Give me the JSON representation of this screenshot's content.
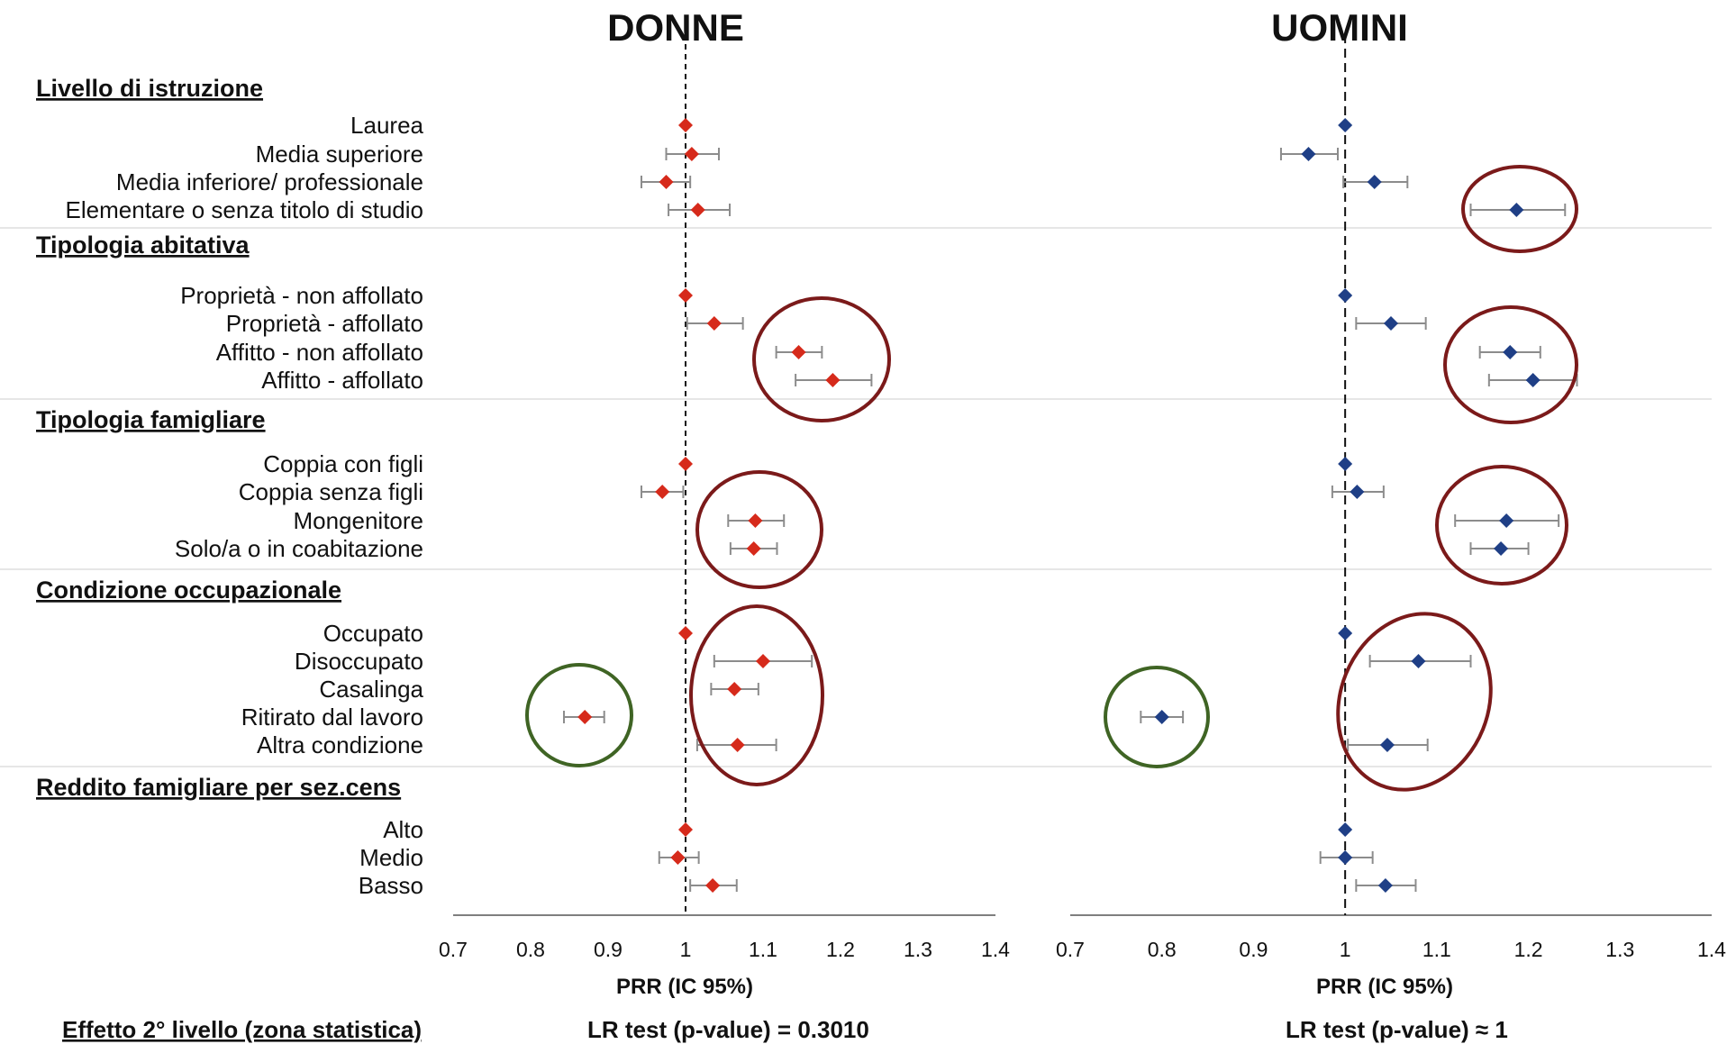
{
  "chart_data": [
    {
      "type": "scatter",
      "title": "DONNE",
      "xlabel": "PRR (IC 95%)",
      "xlim": [
        0.7,
        1.4
      ],
      "xticks": [
        "0.7",
        "0.8",
        "0.9",
        "1",
        "1.1",
        "1.2",
        "1.3",
        "1.4"
      ],
      "reference_line": 1,
      "marker_color": "#d62a1b",
      "rows": [
        {
          "label": "Laurea",
          "prr": 1.0,
          "lo": null,
          "hi": null
        },
        {
          "label": "Media superiore",
          "prr": 1.008,
          "lo": 0.975,
          "hi": 1.043
        },
        {
          "label": "Media inferiore/ professionale",
          "prr": 0.975,
          "lo": 0.943,
          "hi": 1.006
        },
        {
          "label": "Elementare o senza titolo di studio",
          "prr": 1.016,
          "lo": 0.978,
          "hi": 1.057
        },
        {
          "label": "Proprietà - non affollato",
          "prr": 1.0,
          "lo": null,
          "hi": null
        },
        {
          "label": "Proprietà - affollato",
          "prr": 1.037,
          "lo": 1.002,
          "hi": 1.074
        },
        {
          "label": "Affitto - non affollato",
          "prr": 1.146,
          "lo": 1.117,
          "hi": 1.176
        },
        {
          "label": "Affitto - affollato",
          "prr": 1.19,
          "lo": 1.142,
          "hi": 1.24
        },
        {
          "label": "Coppia con figli",
          "prr": 1.0,
          "lo": null,
          "hi": null
        },
        {
          "label": "Coppia senza figli",
          "prr": 0.97,
          "lo": 0.943,
          "hi": 0.997
        },
        {
          "label": "Mongenitore",
          "prr": 1.09,
          "lo": 1.055,
          "hi": 1.127
        },
        {
          "label": "Solo/a o in coabitazione",
          "prr": 1.088,
          "lo": 1.058,
          "hi": 1.118
        },
        {
          "label": "Occupato",
          "prr": 1.0,
          "lo": null,
          "hi": null
        },
        {
          "label": "Disoccupato",
          "prr": 1.1,
          "lo": 1.037,
          "hi": 1.163
        },
        {
          "label": "Casalinga",
          "prr": 1.063,
          "lo": 1.033,
          "hi": 1.094
        },
        {
          "label": "Ritirato dal lavoro",
          "prr": 0.87,
          "lo": 0.843,
          "hi": 0.895
        },
        {
          "label": "Altra condizione",
          "prr": 1.067,
          "lo": 1.015,
          "hi": 1.117
        },
        {
          "label": "Alto",
          "prr": 1.0,
          "lo": null,
          "hi": null
        },
        {
          "label": "Medio",
          "prr": 0.99,
          "lo": 0.966,
          "hi": 1.017
        },
        {
          "label": "Basso",
          "prr": 1.035,
          "lo": 1.006,
          "hi": 1.066
        }
      ]
    },
    {
      "type": "scatter",
      "title": "UOMINI",
      "xlabel": "PRR (IC 95%)",
      "xlim": [
        0.7,
        1.4
      ],
      "xticks": [
        "0.7",
        "0.8",
        "0.9",
        "1",
        "1.1",
        "1.2",
        "1.3",
        "1.4"
      ],
      "reference_line": 1,
      "marker_color": "#1f3f86",
      "rows": [
        {
          "label": "Laurea",
          "prr": 1.0,
          "lo": null,
          "hi": null
        },
        {
          "label": "Media superiore",
          "prr": 0.96,
          "lo": 0.93,
          "hi": 0.992
        },
        {
          "label": "Media inferiore/ professionale",
          "prr": 1.032,
          "lo": 0.998,
          "hi": 1.068
        },
        {
          "label": "Elementare o senza titolo di studio",
          "prr": 1.187,
          "lo": 1.137,
          "hi": 1.24
        },
        {
          "label": "Proprietà - non affollato",
          "prr": 1.0,
          "lo": null,
          "hi": null
        },
        {
          "label": "Proprietà - affollato",
          "prr": 1.05,
          "lo": 1.012,
          "hi": 1.088
        },
        {
          "label": "Affitto - non affollato",
          "prr": 1.18,
          "lo": 1.147,
          "hi": 1.213
        },
        {
          "label": "Affitto - affollato",
          "prr": 1.205,
          "lo": 1.157,
          "hi": 1.253
        },
        {
          "label": "Coppia con figli",
          "prr": 1.0,
          "lo": null,
          "hi": null
        },
        {
          "label": "Coppia senza figli",
          "prr": 1.013,
          "lo": 0.986,
          "hi": 1.042
        },
        {
          "label": "Mongenitore",
          "prr": 1.176,
          "lo": 1.12,
          "hi": 1.233
        },
        {
          "label": "Solo/a o in coabitazione",
          "prr": 1.17,
          "lo": 1.137,
          "hi": 1.2
        },
        {
          "label": "Occupato",
          "prr": 1.0,
          "lo": null,
          "hi": null
        },
        {
          "label": "Disoccupato",
          "prr": 1.08,
          "lo": 1.027,
          "hi": 1.137
        },
        {
          "label": "Casalinga",
          "prr": null,
          "lo": null,
          "hi": null
        },
        {
          "label": "Ritirato dal lavoro",
          "prr": 0.8,
          "lo": 0.777,
          "hi": 0.823
        },
        {
          "label": "Altra condizione",
          "prr": 1.046,
          "lo": 1.003,
          "hi": 1.09
        },
        {
          "label": "Alto",
          "prr": 1.0,
          "lo": null,
          "hi": null
        },
        {
          "label": "Medio",
          "prr": 1.0,
          "lo": 0.973,
          "hi": 1.03
        },
        {
          "label": "Basso",
          "prr": 1.044,
          "lo": 1.012,
          "hi": 1.077
        }
      ]
    }
  ],
  "groups": [
    "Livello di istruzione",
    "Tipologia abitativa",
    "Tipologia famigliare",
    "Condizione occupazionale",
    "Reddito famigliare per sez.cens"
  ],
  "highlight_colors": {
    "elevated": "#7b1a1a",
    "reduced": "#3f6424"
  },
  "footer": {
    "label": "Effetto 2° livello (zona statistica)",
    "donne_test": "LR test (p-value) = 0.3010",
    "uomini_test": "LR test (p-value) ≈ 1"
  }
}
